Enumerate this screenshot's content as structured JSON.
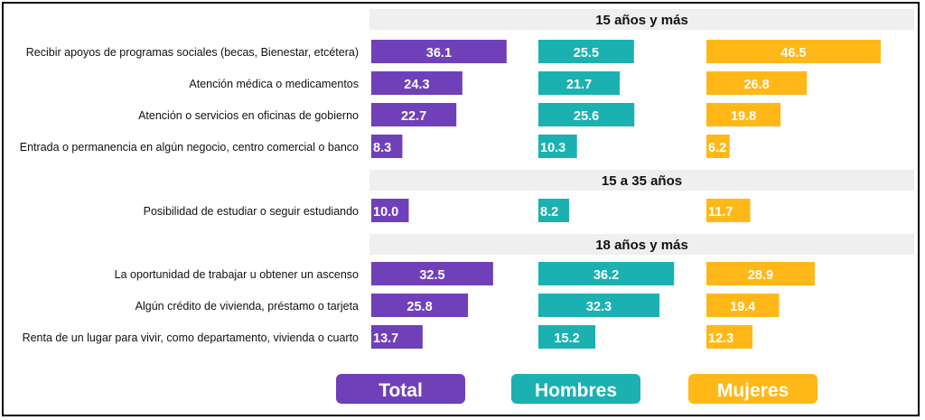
{
  "chart_data": {
    "type": "bar",
    "series": [
      {
        "name": "Total",
        "color": "#7040B8"
      },
      {
        "name": "Hombres",
        "color": "#1BB1B0"
      },
      {
        "name": "Mujeres",
        "color": "#FFB818"
      }
    ],
    "groups": [
      {
        "header": "15 años y más",
        "rows": [
          {
            "label": "Recibir apoyos de programas sociales (becas, Bienestar, etcétera)",
            "values": [
              "36.1",
              "25.5",
              "46.5"
            ]
          },
          {
            "label": "Atención médica o medicamentos",
            "values": [
              "24.3",
              "21.7",
              "26.8"
            ]
          },
          {
            "label": "Atención o servicios en oficinas de gobierno",
            "values": [
              "22.7",
              "25.6",
              "19.8"
            ]
          },
          {
            "label": "Entrada o permanencia en algún negocio, centro comercial o banco",
            "values": [
              "8.3",
              "10.3",
              "6.2"
            ]
          }
        ]
      },
      {
        "header": "15 a 35 años",
        "rows": [
          {
            "label": "Posibilidad de estudiar o seguir estudiando",
            "values": [
              "10.0",
              "8.2",
              "11.7"
            ]
          }
        ]
      },
      {
        "header": "18 años y más",
        "rows": [
          {
            "label": "La oportunidad de trabajar u obtener un ascenso",
            "values": [
              "32.5",
              "36.2",
              "28.9"
            ]
          },
          {
            "label": "Algún crédito de vivienda, préstamo o tarjeta",
            "values": [
              "25.8",
              "32.3",
              "19.4"
            ]
          },
          {
            "label": "Renta de un lugar para vivir, como departamento, vivienda o cuarto",
            "values": [
              "13.7",
              "15.2",
              "12.3"
            ]
          }
        ]
      }
    ],
    "legend": [
      "Total",
      "Hombres",
      "Mujeres"
    ],
    "legend_position": "bottom",
    "colors": {
      "header_band": "#EFEFEF",
      "frame": "#000000"
    }
  }
}
